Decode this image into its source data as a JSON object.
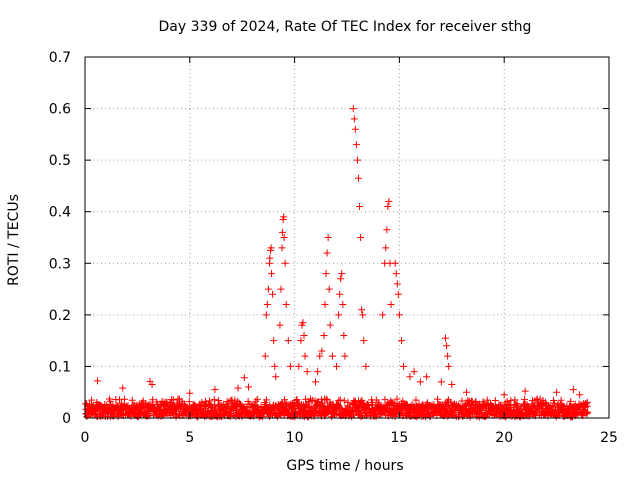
{
  "chart_data": {
    "type": "scatter",
    "title": "Day 339 of 2024, Rate Of TEC Index for receiver sthg",
    "xlabel": "GPS time / hours",
    "ylabel": "ROTI / TECUs",
    "xlim": [
      0,
      25
    ],
    "ylim": [
      0,
      0.7
    ],
    "xticks": [
      "0",
      "5",
      "10",
      "15",
      "20",
      "25"
    ],
    "yticks": [
      "0",
      "0.1",
      "0.2",
      "0.3",
      "0.4",
      "0.5",
      "0.6",
      "0.7"
    ],
    "grid": true,
    "marker": "+",
    "color": "#ff0000",
    "baseline_level": 0.025,
    "series": [
      {
        "name": "ROTI",
        "points": [
          [
            0.6,
            0.072
          ],
          [
            1.8,
            0.058
          ],
          [
            3.1,
            0.071
          ],
          [
            3.2,
            0.065
          ],
          [
            5.0,
            0.048
          ],
          [
            6.2,
            0.055
          ],
          [
            7.3,
            0.058
          ],
          [
            7.6,
            0.078
          ],
          [
            7.8,
            0.06
          ],
          [
            8.6,
            0.12
          ],
          [
            8.65,
            0.2
          ],
          [
            8.7,
            0.22
          ],
          [
            8.75,
            0.25
          ],
          [
            8.8,
            0.3
          ],
          [
            8.82,
            0.31
          ],
          [
            8.85,
            0.325
          ],
          [
            8.88,
            0.33
          ],
          [
            8.9,
            0.28
          ],
          [
            8.95,
            0.24
          ],
          [
            9.0,
            0.15
          ],
          [
            9.05,
            0.1
          ],
          [
            9.1,
            0.08
          ],
          [
            9.3,
            0.18
          ],
          [
            9.35,
            0.25
          ],
          [
            9.4,
            0.33
          ],
          [
            9.42,
            0.36
          ],
          [
            9.45,
            0.385
          ],
          [
            9.48,
            0.39
          ],
          [
            9.5,
            0.35
          ],
          [
            9.55,
            0.3
          ],
          [
            9.6,
            0.22
          ],
          [
            9.7,
            0.15
          ],
          [
            9.8,
            0.1
          ],
          [
            10.2,
            0.1
          ],
          [
            10.3,
            0.15
          ],
          [
            10.35,
            0.18
          ],
          [
            10.4,
            0.185
          ],
          [
            10.45,
            0.16
          ],
          [
            10.5,
            0.12
          ],
          [
            10.6,
            0.09
          ],
          [
            11.0,
            0.07
          ],
          [
            11.1,
            0.09
          ],
          [
            11.2,
            0.12
          ],
          [
            11.3,
            0.13
          ],
          [
            11.4,
            0.16
          ],
          [
            11.45,
            0.22
          ],
          [
            11.5,
            0.28
          ],
          [
            11.55,
            0.32
          ],
          [
            11.6,
            0.35
          ],
          [
            11.65,
            0.25
          ],
          [
            11.7,
            0.18
          ],
          [
            11.8,
            0.12
          ],
          [
            12.0,
            0.1
          ],
          [
            12.1,
            0.2
          ],
          [
            12.15,
            0.24
          ],
          [
            12.2,
            0.27
          ],
          [
            12.25,
            0.28
          ],
          [
            12.3,
            0.22
          ],
          [
            12.35,
            0.16
          ],
          [
            12.4,
            0.12
          ],
          [
            12.8,
            0.6
          ],
          [
            12.85,
            0.58
          ],
          [
            12.9,
            0.56
          ],
          [
            12.95,
            0.53
          ],
          [
            13.0,
            0.5
          ],
          [
            13.05,
            0.465
          ],
          [
            13.1,
            0.41
          ],
          [
            13.15,
            0.35
          ],
          [
            13.2,
            0.21
          ],
          [
            13.25,
            0.2
          ],
          [
            13.3,
            0.15
          ],
          [
            13.4,
            0.1
          ],
          [
            14.2,
            0.2
          ],
          [
            14.3,
            0.3
          ],
          [
            14.35,
            0.33
          ],
          [
            14.4,
            0.365
          ],
          [
            14.45,
            0.41
          ],
          [
            14.5,
            0.42
          ],
          [
            14.55,
            0.3
          ],
          [
            14.6,
            0.22
          ],
          [
            14.8,
            0.3
          ],
          [
            14.85,
            0.28
          ],
          [
            14.9,
            0.26
          ],
          [
            14.95,
            0.24
          ],
          [
            15.0,
            0.2
          ],
          [
            15.1,
            0.15
          ],
          [
            15.2,
            0.1
          ],
          [
            15.5,
            0.08
          ],
          [
            15.7,
            0.09
          ],
          [
            16.0,
            0.07
          ],
          [
            16.3,
            0.08
          ],
          [
            17.0,
            0.07
          ],
          [
            17.2,
            0.155
          ],
          [
            17.25,
            0.14
          ],
          [
            17.3,
            0.12
          ],
          [
            17.35,
            0.1
          ],
          [
            17.5,
            0.065
          ],
          [
            18.2,
            0.05
          ],
          [
            20.0,
            0.045
          ],
          [
            21.0,
            0.052
          ],
          [
            22.5,
            0.05
          ],
          [
            23.3,
            0.055
          ],
          [
            23.6,
            0.045
          ]
        ]
      }
    ]
  }
}
